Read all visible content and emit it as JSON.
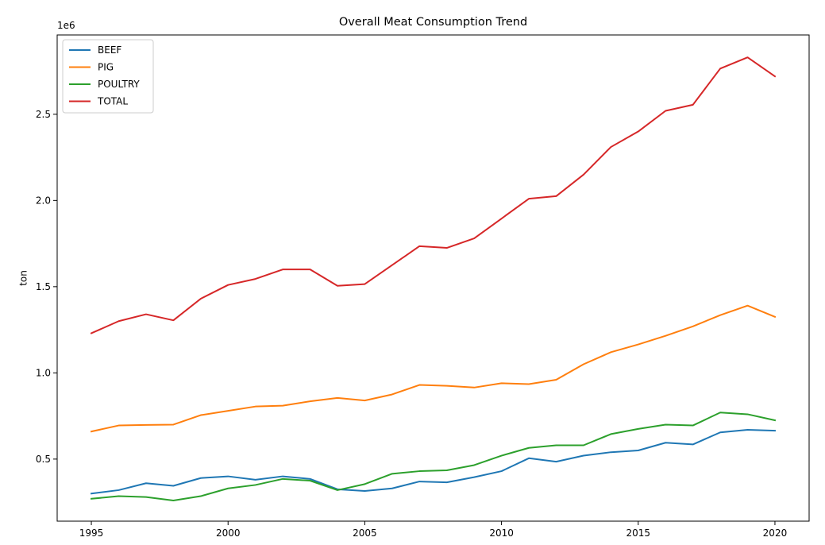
{
  "chart_data": {
    "type": "line",
    "title": "Overall Meat Consumption Trend",
    "xlabel": "",
    "ylabel": "ton",
    "y_offset_text": "1e6",
    "x": [
      1995,
      1996,
      1997,
      1998,
      1999,
      2000,
      2001,
      2002,
      2003,
      2004,
      2005,
      2006,
      2007,
      2008,
      2009,
      2010,
      2011,
      2012,
      2013,
      2014,
      2015,
      2016,
      2017,
      2018,
      2019,
      2020
    ],
    "xlim": [
      1993.75,
      2021.25
    ],
    "ylim": [
      0.14,
      2.96
    ],
    "x_ticks": [
      1995,
      2000,
      2005,
      2010,
      2015,
      2020
    ],
    "x_tick_labels": [
      "1995",
      "2000",
      "2005",
      "2010",
      "2015",
      "2020"
    ],
    "y_ticks": [
      0.5,
      1.0,
      1.5,
      2.0,
      2.5
    ],
    "y_tick_labels": [
      "0.5",
      "1.0",
      "1.5",
      "2.0",
      "2.5"
    ],
    "grid": false,
    "legend_position": "upper-left",
    "series": [
      {
        "name": "BEEF",
        "color": "#1f77b4",
        "values": [
          0.3,
          0.32,
          0.36,
          0.345,
          0.39,
          0.4,
          0.38,
          0.4,
          0.385,
          0.325,
          0.315,
          0.33,
          0.37,
          0.365,
          0.395,
          0.43,
          0.505,
          0.485,
          0.52,
          0.54,
          0.55,
          0.595,
          0.585,
          0.655,
          0.67,
          0.665
        ]
      },
      {
        "name": "PIG",
        "color": "#ff7f0e",
        "values": [
          0.66,
          0.695,
          0.698,
          0.7,
          0.755,
          0.78,
          0.805,
          0.81,
          0.835,
          0.855,
          0.84,
          0.875,
          0.93,
          0.925,
          0.915,
          0.94,
          0.935,
          0.96,
          1.05,
          1.12,
          1.165,
          1.215,
          1.27,
          1.335,
          1.39,
          1.325
        ]
      },
      {
        "name": "POULTRY",
        "color": "#2ca02c",
        "values": [
          0.27,
          0.285,
          0.28,
          0.26,
          0.285,
          0.33,
          0.35,
          0.385,
          0.375,
          0.32,
          0.355,
          0.415,
          0.43,
          0.435,
          0.465,
          0.52,
          0.565,
          0.58,
          0.58,
          0.645,
          0.675,
          0.7,
          0.695,
          0.77,
          0.76,
          0.725
        ]
      },
      {
        "name": "TOTAL",
        "color": "#d62728",
        "values": [
          1.23,
          1.3,
          1.34,
          1.305,
          1.43,
          1.51,
          1.545,
          1.6,
          1.6,
          1.505,
          1.515,
          1.625,
          1.735,
          1.725,
          1.78,
          1.895,
          2.01,
          2.025,
          2.15,
          2.31,
          2.4,
          2.52,
          2.555,
          2.765,
          2.83,
          2.72
        ]
      }
    ]
  }
}
